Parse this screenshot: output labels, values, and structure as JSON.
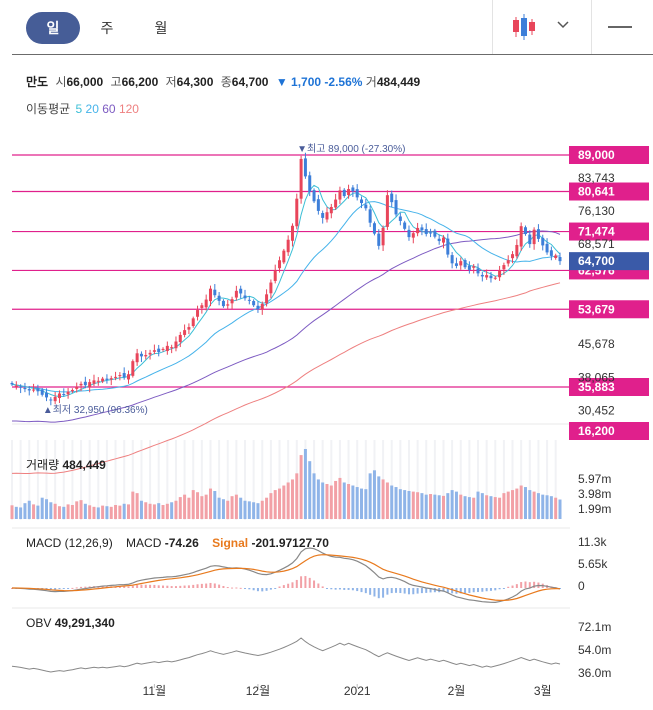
{
  "tabs": [
    {
      "label": "일",
      "active": true
    },
    {
      "label": "주",
      "active": false
    },
    {
      "label": "월",
      "active": false
    }
  ],
  "quote": {
    "name": "만도",
    "open_label": "시",
    "open": "66,000",
    "high_label": "고",
    "high": "66,200",
    "low_label": "저",
    "low": "64,300",
    "close_label": "종",
    "close": "64,700",
    "change_arrow": "▼",
    "change": "1,700",
    "change_pct": "-2.56%",
    "volume_label": "거",
    "volume": "484,449"
  },
  "ma_legend": {
    "label": "이동평균",
    "items": [
      {
        "period": "5",
        "color": "#3cbfd6"
      },
      {
        "period": "20",
        "color": "#46b3ea"
      },
      {
        "period": "60",
        "color": "#7d5bc2"
      },
      {
        "period": "120",
        "color": "#ee8080"
      }
    ]
  },
  "colors": {
    "up": "#e8455a",
    "down": "#3d7fd9",
    "level": "#e0208c",
    "current": "#3a5aa8",
    "volume_up": "#f2a0a6",
    "volume_down": "#8fb4e8",
    "macd": "#777777",
    "signal": "#e87a1e",
    "obv": "#888888"
  },
  "chart_data": [
    {
      "type": "candlestick",
      "x_labels": [
        "11월",
        "12월",
        "2021",
        "2월",
        "3월"
      ],
      "y_ticks": [
        89000,
        83743,
        76130,
        71474,
        68571,
        62576,
        53679,
        45678,
        38065,
        35883,
        30452,
        16200
      ],
      "y_tick_labels": [
        "89,000",
        "83,743",
        "76,130",
        "71,474",
        "68,571",
        "62,576",
        "53,679",
        "45,678",
        "38,065",
        "35,883",
        "30,452",
        "16,200"
      ],
      "level_lines": [
        {
          "value": 89000,
          "label": "89,000"
        },
        {
          "value": 80641,
          "label": "80,641"
        },
        {
          "value": 71474,
          "label": "71,474"
        },
        {
          "value": 62576,
          "label": "62,576"
        },
        {
          "value": 53679,
          "label": "53,679"
        },
        {
          "value": 35883,
          "label": "35,883"
        },
        {
          "value": 16200,
          "label": "16,200"
        }
      ],
      "current_price": {
        "value": 64700,
        "label": "64,700"
      },
      "high_annotation": {
        "text": "▼최고 89,000 (-27.30%)",
        "value": 89000
      },
      "low_annotation": {
        "text": "▲최저 32,950 (96.36%)",
        "value": 32950
      },
      "close": [
        36500,
        36200,
        35800,
        35400,
        35100,
        35300,
        34900,
        34100,
        33500,
        33000,
        33600,
        34400,
        34200,
        34800,
        35200,
        35900,
        36600,
        36300,
        37000,
        37400,
        37300,
        37800,
        37500,
        37900,
        38200,
        38600,
        38100,
        38800,
        41800,
        43600,
        42900,
        43200,
        43700,
        44300,
        43900,
        44600,
        45300,
        45000,
        46300,
        47800,
        48900,
        49600,
        51600,
        53500,
        54600,
        55900,
        58400,
        56900,
        55600,
        54400,
        54800,
        56000,
        57900,
        57300,
        56200,
        55800,
        54600,
        53700,
        54900,
        57100,
        59800,
        62600,
        64900,
        67100,
        69600,
        72800,
        79000,
        88100,
        84100,
        80600,
        78400,
        76200,
        74600,
        75900,
        77100,
        78800,
        80900,
        79600,
        81200,
        80700,
        79300,
        78000,
        76800,
        73500,
        71000,
        68200,
        72300,
        79800,
        78200,
        75400,
        73900,
        72100,
        70200,
        71100,
        72300,
        71800,
        70900,
        71200,
        70300,
        69300,
        70100,
        66200,
        64200,
        63600,
        64700,
        63300,
        62700,
        63500,
        61900,
        61200,
        61500,
        60800,
        60900,
        62600,
        63800,
        64900,
        66300,
        68400,
        72700,
        70900,
        68600,
        71900,
        69800,
        68300,
        66700,
        65900,
        66000,
        64700
      ],
      "volume": [
        45,
        40,
        38,
        52,
        60,
        48,
        44,
        70,
        65,
        55,
        50,
        42,
        40,
        48,
        46,
        58,
        62,
        50,
        45,
        40,
        38,
        44,
        42,
        40,
        46,
        44,
        50,
        48,
        90,
        85,
        60,
        55,
        50,
        48,
        52,
        46,
        50,
        55,
        60,
        72,
        80,
        70,
        95,
        88,
        75,
        80,
        100,
        92,
        70,
        65,
        60,
        75,
        80,
        70,
        60,
        58,
        55,
        52,
        60,
        70,
        85,
        95,
        100,
        110,
        120,
        130,
        150,
        210,
        230,
        190,
        150,
        130,
        120,
        115,
        110,
        125,
        135,
        120,
        115,
        110,
        105,
        100,
        98,
        150,
        160,
        140,
        130,
        120,
        110,
        105,
        98,
        95,
        92,
        90,
        88,
        85,
        80,
        82,
        80,
        78,
        76,
        85,
        95,
        90,
        80,
        75,
        72,
        70,
        90,
        85,
        78,
        75,
        72,
        70,
        85,
        90,
        95,
        100,
        110,
        105,
        95,
        90,
        85,
        80,
        78,
        75,
        70,
        64
      ],
      "volume_ticks": [
        "5.97m",
        "3.98m",
        "1.99m"
      ],
      "macd_ticks": [
        "11.3k",
        "5.65k",
        "0"
      ],
      "obv_ticks": [
        "72.1m",
        "54.0m",
        "36.0m"
      ]
    }
  ],
  "volume_panel": {
    "label": "거래량",
    "value": "484,449"
  },
  "macd_panel": {
    "label": "MACD (12,26,9)",
    "macd_label": "MACD",
    "macd_value": "-74.26",
    "signal_label": "Signal",
    "signal_value": "-201.97127.70"
  },
  "obv_panel": {
    "label": "OBV",
    "value": "49,291,340"
  }
}
